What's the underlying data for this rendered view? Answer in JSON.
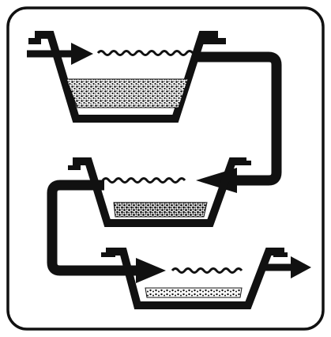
{
  "colors": {
    "background": "#ffffff",
    "ink": "#111111",
    "sediment": "#6e6e6e"
  },
  "icons": {
    "basins": "trapezoid-basin-icon",
    "flow": "flow-arrow-icon",
    "water": "wave-surface-icon",
    "sediment": "stippled-sediment-icon"
  },
  "stages": [
    {
      "id": "upper",
      "sediment_level": "heavy"
    },
    {
      "id": "middle",
      "sediment_level": "medium"
    },
    {
      "id": "lower",
      "sediment_level": "light"
    }
  ]
}
